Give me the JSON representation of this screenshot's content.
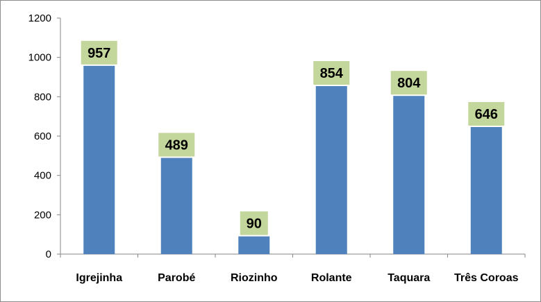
{
  "chart_data": {
    "type": "bar",
    "categories": [
      "Igrejinha",
      "Parobé",
      "Riozinho",
      "Rolante",
      "Taquara",
      "Três Coroas"
    ],
    "values": [
      957,
      489,
      90,
      854,
      804,
      646
    ],
    "data_labels": [
      "957",
      "489",
      "90",
      "854",
      "804",
      "646"
    ],
    "yticks": [
      0,
      200,
      400,
      600,
      800,
      1000,
      1200
    ],
    "ylim": [
      0,
      1200
    ],
    "grid": false,
    "legend": "none",
    "bar_color": "#4f81bd",
    "label_bg_color": "#c3d69b"
  }
}
